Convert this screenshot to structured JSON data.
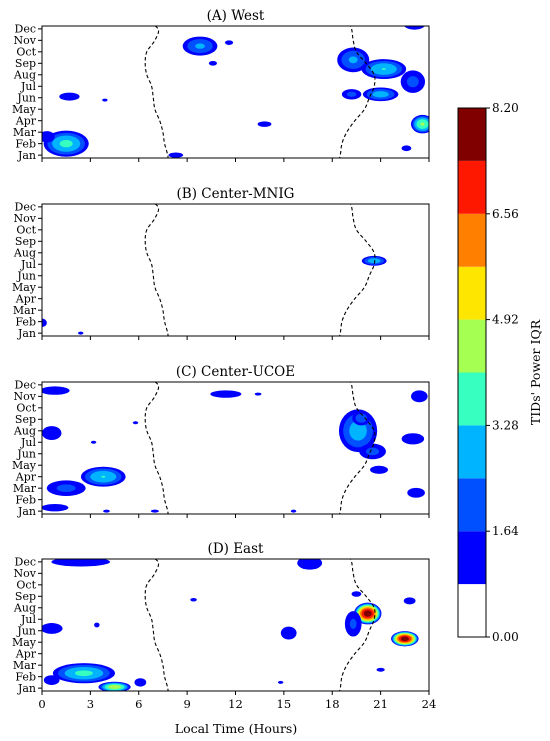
{
  "chart_data": {
    "type": "heatmap",
    "months": [
      "Jan",
      "Feb",
      "Mar",
      "Apr",
      "May",
      "Jun",
      "Jul",
      "Aug",
      "Sep",
      "Oct",
      "Nov",
      "Dec"
    ],
    "xlabel": "Local Time (Hours)",
    "xticks": [
      0,
      3,
      6,
      9,
      12,
      15,
      18,
      21,
      24
    ],
    "xlim": [
      0,
      24
    ],
    "colorbar": {
      "label": "TIDs' Power IQR",
      "ticks": [
        "0.00",
        "1.64",
        "3.28",
        "4.92",
        "6.56",
        "8.20"
      ],
      "range": [
        0,
        8.2
      ],
      "levels": [
        0,
        0.82,
        1.64,
        2.46,
        3.28,
        4.1,
        4.92,
        5.74,
        6.56,
        7.38,
        8.2
      ],
      "colors": [
        "#ffffff",
        "#0000ff",
        "#0050ff",
        "#00b4ff",
        "#36ffc0",
        "#a4ff52",
        "#ffe600",
        "#ff7f00",
        "#ff1800",
        "#800000"
      ]
    },
    "terminator": {
      "sunrise": [
        6.6,
        6.4,
        7.2,
        7.0,
        6.5,
        6.4,
        6.5,
        6.8,
        6.9,
        7.0,
        7.3,
        7.5,
        7.6,
        7.8,
        7.8,
        7.8
      ],
      "sunset": [
        19.4,
        19.0,
        19.2,
        19.3,
        19.5,
        20.1,
        20.6,
        20.6,
        20.3,
        20.0,
        19.4,
        18.9,
        18.6,
        18.5,
        18.4,
        18.5
      ],
      "month_positions": [
        12.2,
        11.8,
        11.0,
        10.0,
        9.0,
        8.0,
        7.0,
        6.0,
        5.0,
        4.0,
        3.0,
        2.0,
        1.0,
        0.0,
        -0.5,
        -0.8
      ]
    },
    "panels": [
      {
        "title": "(A) West",
        "blobs": [
          {
            "t": 1.0,
            "m": 11.8,
            "rx": 0.8,
            "ry": 0.6,
            "peak": 1.4
          },
          {
            "t": 4.2,
            "m": 11.6,
            "rx": 0.5,
            "ry": 0.5,
            "peak": 1.2
          },
          {
            "t": 9.8,
            "m": 9.5,
            "rx": 1.3,
            "ry": 1.0,
            "peak": 2.6
          },
          {
            "t": 12.4,
            "m": 11.8,
            "rx": 0.6,
            "ry": 0.5,
            "peak": 1.2
          },
          {
            "t": 11.6,
            "m": 9.8,
            "rx": 0.5,
            "ry": 0.4,
            "peak": 1.1
          },
          {
            "t": 10.6,
            "m": 8.0,
            "rx": 0.5,
            "ry": 0.4,
            "peak": 1.1
          },
          {
            "t": 1.7,
            "m": 5.1,
            "rx": 0.9,
            "ry": 0.5,
            "peak": 1.6
          },
          {
            "t": 3.9,
            "m": 4.8,
            "rx": 0.4,
            "ry": 0.3,
            "peak": 1.0
          },
          {
            "t": 1.5,
            "m": 1.0,
            "rx": 1.6,
            "ry": 1.3,
            "peak": 3.5
          },
          {
            "t": 0.3,
            "m": 1.6,
            "rx": 0.7,
            "ry": 0.7,
            "peak": 1.6
          },
          {
            "t": 8.3,
            "m": 0.0,
            "rx": 0.8,
            "ry": 0.4,
            "peak": 1.2
          },
          {
            "t": 13.8,
            "m": 2.7,
            "rx": 0.7,
            "ry": 0.4,
            "peak": 1.3
          },
          {
            "t": 19.3,
            "m": 8.3,
            "rx": 1.2,
            "ry": 1.3,
            "peak": 2.6
          },
          {
            "t": 21.2,
            "m": 7.5,
            "rx": 1.6,
            "ry": 1.0,
            "peak": 3.3
          },
          {
            "t": 21.0,
            "m": 5.3,
            "rx": 1.3,
            "ry": 0.7,
            "peak": 2.9
          },
          {
            "t": 19.2,
            "m": 5.3,
            "rx": 0.8,
            "ry": 0.6,
            "peak": 1.9
          },
          {
            "t": 23.0,
            "m": 6.4,
            "rx": 1.0,
            "ry": 1.3,
            "peak": 1.9
          },
          {
            "t": 23.1,
            "m": 11.4,
            "rx": 1.0,
            "ry": 0.7,
            "peak": 1.5
          },
          {
            "t": 23.6,
            "m": 2.7,
            "rx": 0.8,
            "ry": 0.9,
            "peak": 4.2
          },
          {
            "t": 22.6,
            "m": 0.6,
            "rx": 0.6,
            "ry": 0.5,
            "peak": 1.1
          }
        ]
      },
      {
        "title": "(B) Center-MNIG",
        "blobs": [
          {
            "t": 20.6,
            "m": 6.3,
            "rx": 0.9,
            "ry": 0.5,
            "peak": 3.0
          },
          {
            "t": 0.0,
            "m": 0.9,
            "rx": 0.5,
            "ry": 0.6,
            "peak": 1.3
          },
          {
            "t": 2.4,
            "m": 0.0,
            "rx": 0.4,
            "ry": 0.3,
            "peak": 1.0
          }
        ]
      },
      {
        "title": "(C) Center-UCOE",
        "blobs": [
          {
            "t": 0.8,
            "m": 10.5,
            "rx": 1.5,
            "ry": 0.6,
            "peak": 1.3
          },
          {
            "t": 4.2,
            "m": 11.5,
            "rx": 1.0,
            "ry": 0.5,
            "peak": 1.2
          },
          {
            "t": 0.6,
            "m": 6.8,
            "rx": 0.9,
            "ry": 0.9,
            "peak": 1.5
          },
          {
            "t": 3.2,
            "m": 6.0,
            "rx": 0.4,
            "ry": 0.3,
            "peak": 1.0
          },
          {
            "t": 3.8,
            "m": 3.0,
            "rx": 1.6,
            "ry": 1.0,
            "peak": 3.3
          },
          {
            "t": 1.5,
            "m": 2.0,
            "rx": 1.6,
            "ry": 0.9,
            "peak": 1.9
          },
          {
            "t": 0.8,
            "m": 0.3,
            "rx": 1.3,
            "ry": 0.5,
            "peak": 1.4
          },
          {
            "t": 4.0,
            "m": 0.0,
            "rx": 0.5,
            "ry": 0.3,
            "peak": 1.0
          },
          {
            "t": 7.0,
            "m": 0.0,
            "rx": 0.6,
            "ry": 0.3,
            "peak": 1.0
          },
          {
            "t": 5.8,
            "m": 7.7,
            "rx": 0.4,
            "ry": 0.3,
            "peak": 1.0
          },
          {
            "t": 11.4,
            "m": 10.2,
            "rx": 1.5,
            "ry": 0.5,
            "peak": 1.4
          },
          {
            "t": 13.4,
            "m": 10.2,
            "rx": 0.5,
            "ry": 0.3,
            "peak": 1.0
          },
          {
            "t": 15.6,
            "m": 0.0,
            "rx": 0.4,
            "ry": 0.3,
            "peak": 1.0
          },
          {
            "t": 19.6,
            "m": 7.0,
            "rx": 1.4,
            "ry": 2.2,
            "peak": 2.9
          },
          {
            "t": 19.8,
            "m": 8.1,
            "rx": 0.7,
            "ry": 0.8,
            "peak": 2.2
          },
          {
            "t": 20.5,
            "m": 5.2,
            "rx": 1.1,
            "ry": 0.9,
            "peak": 1.9
          },
          {
            "t": 20.9,
            "m": 3.6,
            "rx": 0.8,
            "ry": 0.5,
            "peak": 1.6
          },
          {
            "t": 23.4,
            "m": 10.0,
            "rx": 0.8,
            "ry": 0.8,
            "peak": 1.4
          },
          {
            "t": 23.0,
            "m": 6.3,
            "rx": 1.0,
            "ry": 0.7,
            "peak": 1.6
          },
          {
            "t": 23.2,
            "m": 1.6,
            "rx": 0.9,
            "ry": 0.7,
            "peak": 1.3
          }
        ]
      },
      {
        "title": "(D) East",
        "blobs": [
          {
            "t": 2.4,
            "m": 11.0,
            "rx": 2.7,
            "ry": 0.6,
            "peak": 1.5
          },
          {
            "t": 0.6,
            "m": 5.2,
            "rx": 1.0,
            "ry": 0.7,
            "peak": 1.5
          },
          {
            "t": 3.4,
            "m": 5.5,
            "rx": 0.4,
            "ry": 0.5,
            "peak": 1.0
          },
          {
            "t": 2.6,
            "m": 1.3,
            "rx": 2.2,
            "ry": 1.0,
            "peak": 3.5
          },
          {
            "t": 4.5,
            "m": 0.1,
            "rx": 1.1,
            "ry": 0.5,
            "peak": 4.7
          },
          {
            "t": 6.1,
            "m": 0.5,
            "rx": 0.6,
            "ry": 0.6,
            "peak": 1.3
          },
          {
            "t": 0.6,
            "m": 0.7,
            "rx": 0.8,
            "ry": 0.7,
            "peak": 1.3
          },
          {
            "t": 9.4,
            "m": 7.7,
            "rx": 0.4,
            "ry": 0.3,
            "peak": 1.1
          },
          {
            "t": 12.4,
            "m": 12.0,
            "rx": 0.4,
            "ry": 0.3,
            "peak": 1.0
          },
          {
            "t": 15.3,
            "m": 4.8,
            "rx": 0.7,
            "ry": 0.8,
            "peak": 1.6
          },
          {
            "t": 14.8,
            "m": 0.5,
            "rx": 0.4,
            "ry": 0.3,
            "peak": 1.0
          },
          {
            "t": 16.6,
            "m": 10.9,
            "rx": 1.2,
            "ry": 0.9,
            "peak": 1.4
          },
          {
            "t": 20.2,
            "m": 6.5,
            "rx": 0.9,
            "ry": 1.0,
            "peak": 8.0
          },
          {
            "t": 19.3,
            "m": 5.6,
            "rx": 0.7,
            "ry": 1.5,
            "peak": 1.8
          },
          {
            "t": 19.5,
            "m": 8.2,
            "rx": 0.5,
            "ry": 0.4,
            "peak": 1.3
          },
          {
            "t": 22.5,
            "m": 4.3,
            "rx": 0.9,
            "ry": 0.7,
            "peak": 8.0
          },
          {
            "t": 22.8,
            "m": 7.6,
            "rx": 0.6,
            "ry": 0.5,
            "peak": 1.3
          },
          {
            "t": 21.0,
            "m": 1.6,
            "rx": 0.6,
            "ry": 0.4,
            "peak": 1.0
          }
        ]
      }
    ]
  }
}
